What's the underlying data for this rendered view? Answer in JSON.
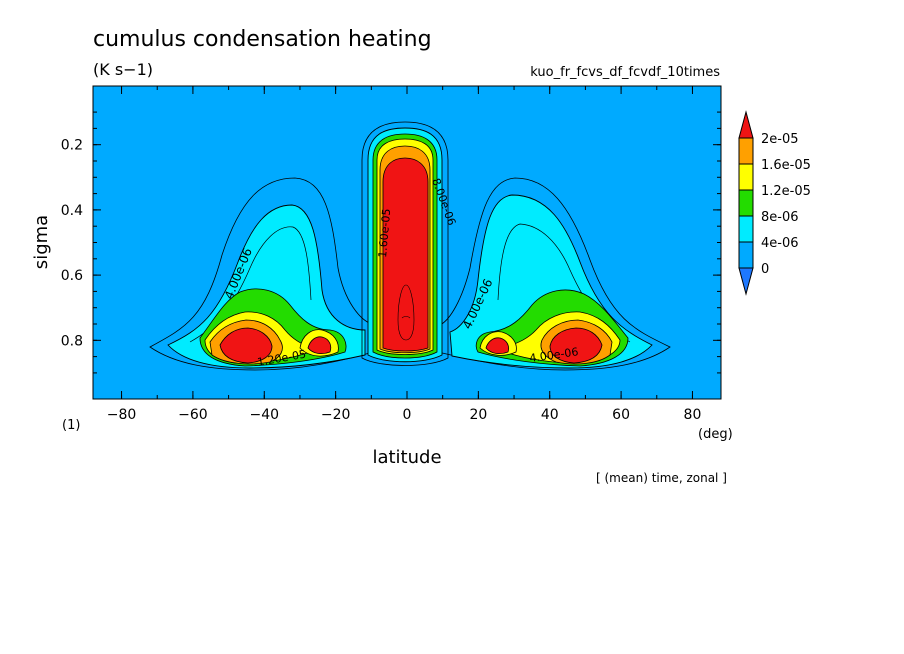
{
  "chart_data": {
    "type": "heatmap",
    "title": "cumulus condensation heating",
    "units": "(K s−1)",
    "run_label": "kuo_fr_fcvs_df_fcvdf_10times",
    "xlabel": "latitude",
    "x_unit": "(deg)",
    "ylabel": "sigma",
    "y_unit": "(1)",
    "footer": "[ (mean) time, zonal ]",
    "xlim": [
      -88,
      88
    ],
    "ylim": [
      0.02,
      0.98
    ],
    "y_reversed": true,
    "x_ticks": [
      -80,
      -60,
      -40,
      -20,
      0,
      20,
      40,
      60,
      80
    ],
    "x_tick_labels": [
      "−80",
      "−60",
      "−40",
      "−20",
      "0",
      "20",
      "40",
      "60",
      "80"
    ],
    "y_ticks": [
      0.2,
      0.4,
      0.6,
      0.8
    ],
    "y_tick_labels": [
      "0.2",
      "0.4",
      "0.6",
      "0.8"
    ],
    "levels": [
      {
        "label": "0",
        "color": "#1e78ff"
      },
      {
        "label": "4e-06",
        "color": "#00aaff"
      },
      {
        "label": "8e-06",
        "color": "#00ebff"
      },
      {
        "label": "1.2e-05",
        "color": "#23dc00"
      },
      {
        "label": "1.6e-05",
        "color": "#ffff00"
      },
      {
        "label": "2e-05",
        "color": "#ffa000"
      },
      {
        "label": "",
        "color": "#f01414"
      }
    ],
    "background_color": "#00aaff",
    "contour_labels": [
      "4.00e-06",
      "4.00e-06",
      "1.60e-05",
      "1.20e-05",
      "4.00e-06",
      "8.00e-06"
    ],
    "regions": [
      {
        "name": "equatorial-core",
        "center_lat": 0,
        "max_value": 2.2e-05,
        "sigma_range": [
          0.2,
          0.88
        ]
      },
      {
        "name": "south-midlat",
        "center_lat": -42,
        "max_value": 2.1e-05,
        "sigma_range": [
          0.3,
          0.9
        ]
      },
      {
        "name": "north-midlat",
        "center_lat": 42,
        "max_value": 2.1e-05,
        "sigma_range": [
          0.34,
          0.9
        ]
      }
    ]
  }
}
